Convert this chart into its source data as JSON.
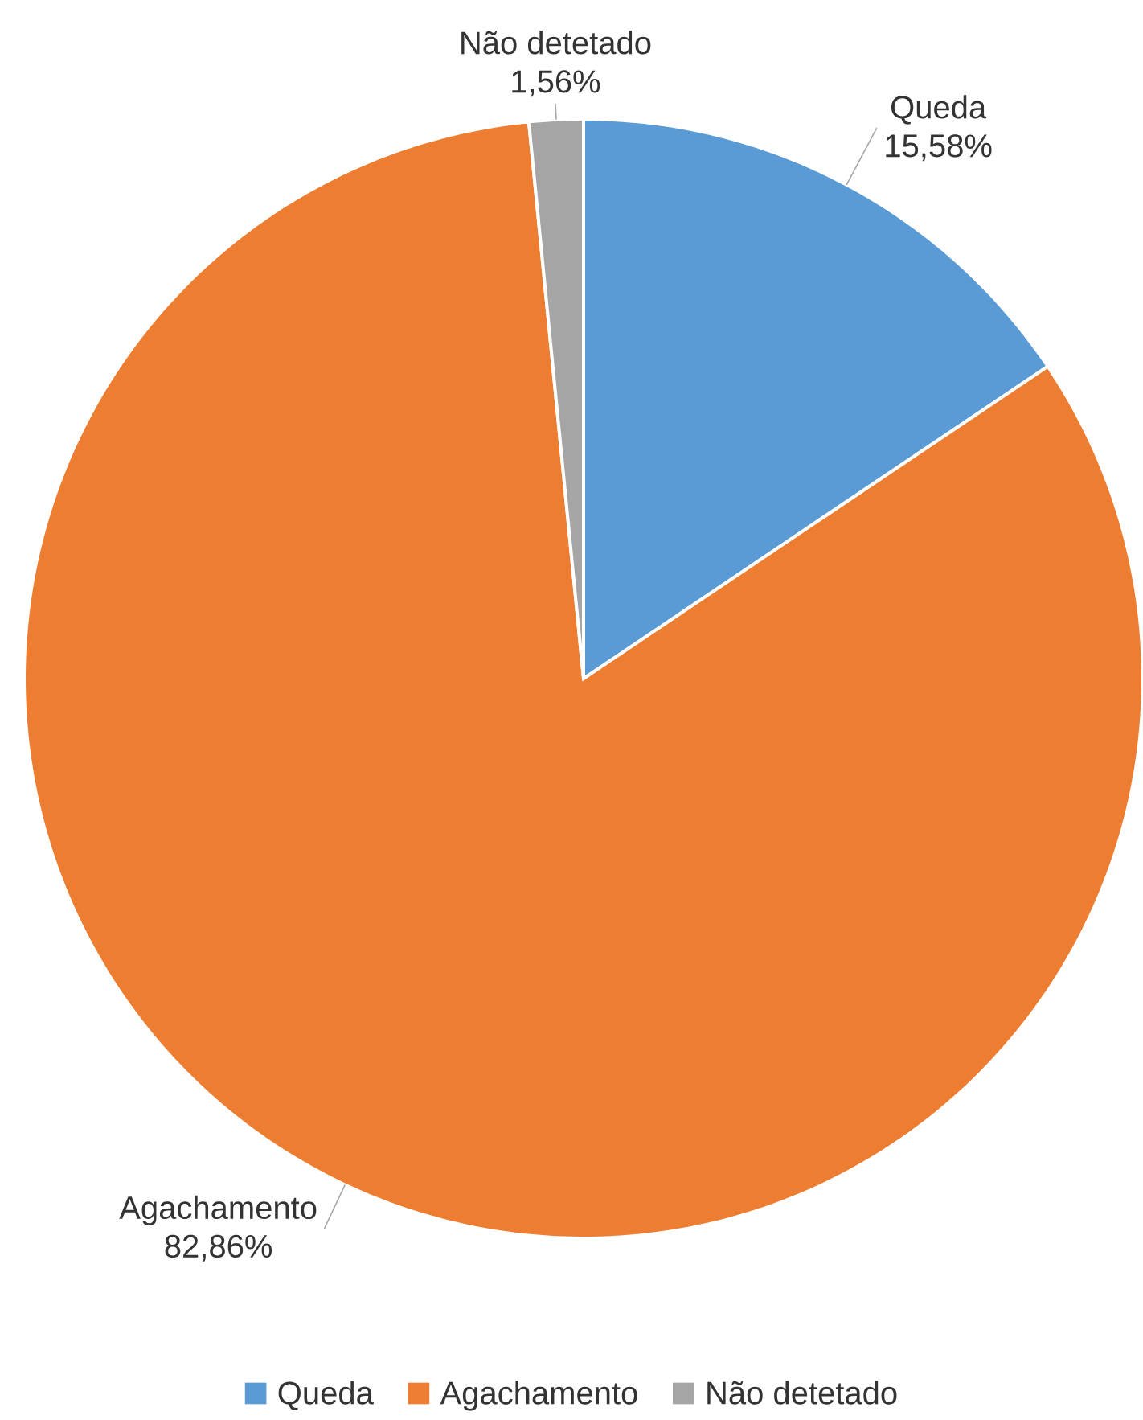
{
  "chart_data": {
    "type": "pie",
    "categories": [
      "Queda",
      "Agachamento",
      "Não detetado"
    ],
    "values": [
      15.58,
      82.86,
      1.56
    ],
    "value_labels": [
      "15,58%",
      "82,86%",
      "1,56%"
    ],
    "colors": [
      "#5b9bd5",
      "#ed7d31",
      "#a5a5a5"
    ],
    "legend": "bottom"
  }
}
